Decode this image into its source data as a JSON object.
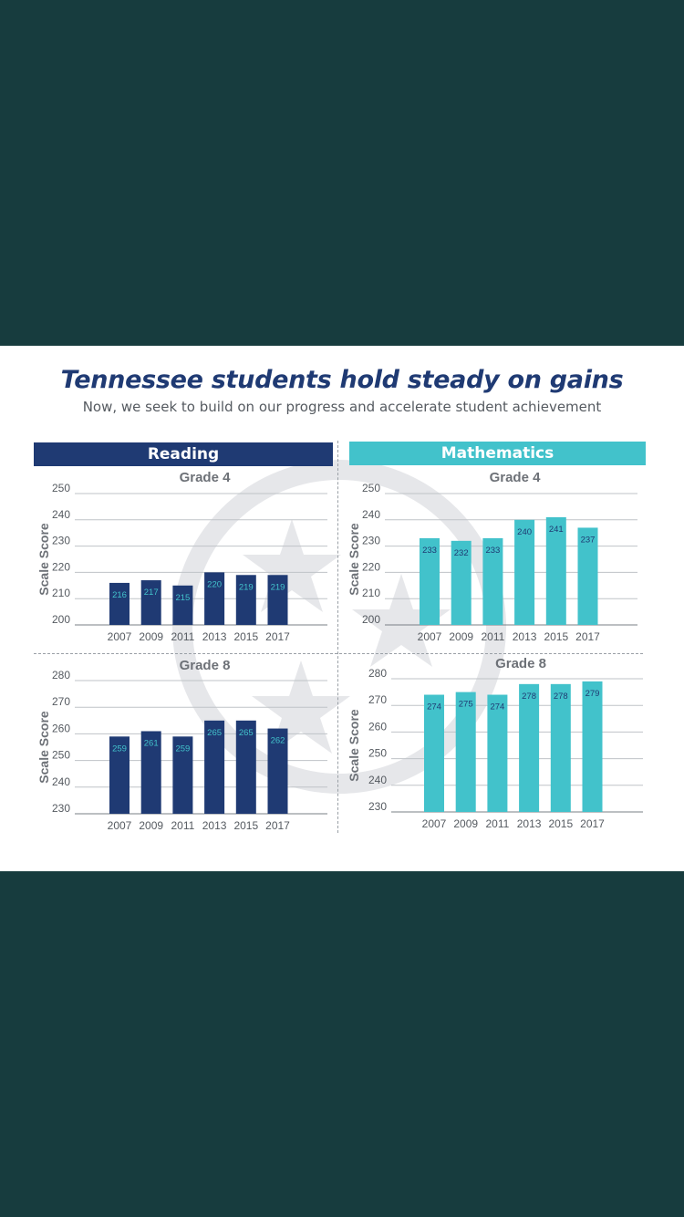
{
  "title": "Tennessee students hold steady on gains",
  "subtitle": "Now, we seek to build on our progress and accelerate student achievement",
  "sections": {
    "reading": "Reading",
    "math": "Mathematics"
  },
  "colors": {
    "background": "#173c3e",
    "reading": "#1f3a73",
    "math": "#42c2cb",
    "reading_label": "#42c2cb",
    "math_label": "#1f3a73"
  },
  "chart_data": [
    {
      "type": "bar",
      "subject": "Reading",
      "title": "Grade 4",
      "ylabel": "Scale Score",
      "xlabel": "",
      "categories": [
        "2007",
        "2009",
        "2011",
        "2013",
        "2015",
        "2017"
      ],
      "values": [
        216,
        217,
        215,
        220,
        219,
        219
      ],
      "ylim": [
        200,
        250
      ],
      "yticks": [
        200,
        210,
        220,
        230,
        240,
        250
      ],
      "grid": true
    },
    {
      "type": "bar",
      "subject": "Reading",
      "title": "Grade 8",
      "ylabel": "Scale Score",
      "xlabel": "",
      "categories": [
        "2007",
        "2009",
        "2011",
        "2013",
        "2015",
        "2017"
      ],
      "values": [
        259,
        261,
        259,
        265,
        265,
        262
      ],
      "ylim": [
        230,
        280
      ],
      "yticks": [
        230,
        240,
        250,
        260,
        270,
        280
      ],
      "grid": true
    },
    {
      "type": "bar",
      "subject": "Mathematics",
      "title": "Grade 4",
      "ylabel": "Scale Score",
      "xlabel": "",
      "categories": [
        "2007",
        "2009",
        "2011",
        "2013",
        "2015",
        "2017"
      ],
      "values": [
        233,
        232,
        233,
        240,
        241,
        237
      ],
      "ylim": [
        200,
        250
      ],
      "yticks": [
        200,
        210,
        220,
        230,
        240,
        250
      ],
      "grid": true
    },
    {
      "type": "bar",
      "subject": "Mathematics",
      "title": "Grade 8",
      "ylabel": "Scale Score",
      "xlabel": "",
      "categories": [
        "2007",
        "2009",
        "2011",
        "2013",
        "2015",
        "2017"
      ],
      "values": [
        274,
        275,
        274,
        278,
        278,
        279
      ],
      "ylim": [
        230,
        280
      ],
      "yticks": [
        230,
        240,
        250,
        260,
        270,
        280
      ],
      "grid": true
    }
  ]
}
